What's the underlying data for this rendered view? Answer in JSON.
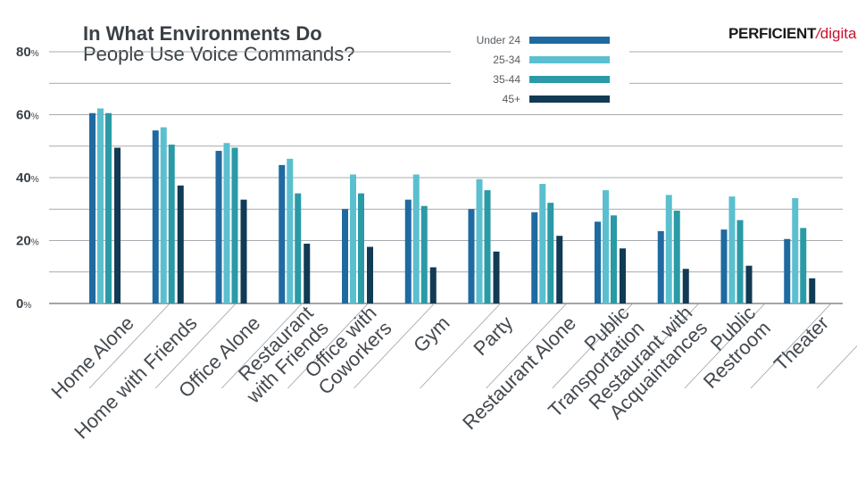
{
  "title_line1": "In What Environments Do",
  "title_line2": "People Use Voice Commands?",
  "logo": {
    "bold": "PERFICIENT",
    "slash": "/",
    "accent": "digital"
  },
  "colors": {
    "under24": "#1f6aa0",
    "25_34": "#5bbfcf",
    "35_44": "#2a9aa6",
    "45plus": "#113a54",
    "grid": "#8a8f94",
    "text": "#3a4045",
    "logo_red": "#c8102e"
  },
  "chart_data": {
    "type": "bar",
    "title": "In What Environments Do People Use Voice Commands?",
    "categories": [
      [
        "Home Alone"
      ],
      [
        "Home with Friends"
      ],
      [
        "Office Alone"
      ],
      [
        "Restaurant",
        "with Friends"
      ],
      [
        "Office with",
        "Coworkers"
      ],
      [
        "Gym"
      ],
      [
        "Party"
      ],
      [
        "Restaurant Alone"
      ],
      [
        "Public",
        "Transportation"
      ],
      [
        "Restaurant with",
        "Acquaintances"
      ],
      [
        "Public",
        "Restroom"
      ],
      [
        "Theater"
      ]
    ],
    "series": [
      {
        "name": "Under 24",
        "values": [
          60.5,
          55,
          48.5,
          44,
          30,
          33,
          30,
          29,
          26,
          23,
          23.5,
          20.5
        ]
      },
      {
        "name": "25-34",
        "values": [
          62,
          56,
          51,
          46,
          41,
          41,
          39.5,
          38,
          36,
          34.5,
          34,
          33.5
        ]
      },
      {
        "name": "35-44",
        "values": [
          60.5,
          50.5,
          49.5,
          35,
          35,
          31,
          36,
          32,
          28,
          29.5,
          26.5,
          24
        ]
      },
      {
        "name": "45+",
        "values": [
          49.5,
          37.5,
          33,
          19,
          18,
          11.5,
          16.5,
          21.5,
          17.5,
          11,
          12,
          8
        ]
      }
    ],
    "yticks": [
      {
        "value": 0,
        "num": "0",
        "unit": "%"
      },
      {
        "value": 20,
        "num": "20",
        "unit": "%"
      },
      {
        "value": 40,
        "num": "40",
        "unit": "%"
      },
      {
        "value": 60,
        "num": "60",
        "unit": "%"
      },
      {
        "value": 80,
        "num": "80",
        "unit": "%"
      }
    ],
    "ylim": [
      0,
      80
    ],
    "grid": true,
    "legend_position": "top-center"
  }
}
